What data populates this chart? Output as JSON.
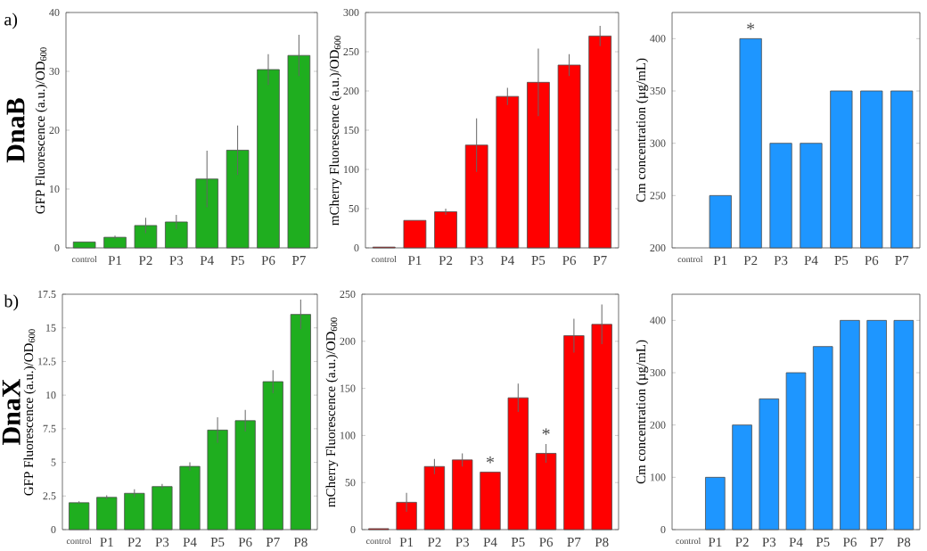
{
  "chart_data": [
    {
      "type": "bar",
      "categories": [
        "control",
        "P1",
        "P2",
        "P3",
        "P4",
        "P5",
        "P6",
        "P7"
      ],
      "ylabel": "GFP Fluorescence (a.u.)/OD$_{600}$",
      "color": "#1fae1f",
      "values": [
        1.0,
        1.8,
        3.8,
        4.4,
        11.7,
        16.6,
        30.3,
        32.7
      ],
      "errors": [
        null,
        0.3,
        1.3,
        1.2,
        4.8,
        4.2,
        2.6,
        3.5
      ],
      "ylim": [
        0,
        40
      ],
      "yticks": [
        0,
        10,
        20,
        30,
        40
      ],
      "annotations": [
        "a)",
        "DnaB"
      ]
    },
    {
      "type": "bar",
      "categories": [
        "control",
        "P1",
        "P2",
        "P3",
        "P4",
        "P5",
        "P6",
        "P7"
      ],
      "ylabel": "mCherry Fluorescence (a.u.)/OD$_{600}$",
      "color": "#ff0000",
      "values": [
        1,
        35,
        46,
        131,
        193,
        211,
        233,
        270
      ],
      "errors": [
        null,
        null,
        4,
        34,
        11,
        43,
        14,
        13
      ],
      "ylim": [
        0,
        300
      ],
      "yticks": [
        0,
        50,
        100,
        150,
        200,
        250,
        300
      ]
    },
    {
      "type": "bar",
      "categories": [
        "control",
        "P1",
        "P2",
        "P3",
        "P4",
        "P5",
        "P6",
        "P7"
      ],
      "ylabel": "Cm concentration (µg/mL)",
      "color": "#1e96ff",
      "values": [
        null,
        250,
        400,
        300,
        300,
        350,
        350,
        350
      ],
      "ylim": [
        200,
        425
      ],
      "yticks": [
        200,
        250,
        300,
        350,
        400
      ],
      "value_labels": [
        null,
        null,
        "*",
        null,
        null,
        null,
        null,
        null
      ]
    },
    {
      "type": "bar",
      "categories": [
        "control",
        "P1",
        "P2",
        "P3",
        "P4",
        "P5",
        "P6",
        "P7",
        "P8"
      ],
      "ylabel": "GFP Fluorescence (a.u.)/OD$_{600}$",
      "color": "#1fae1f",
      "values": [
        2.0,
        2.4,
        2.7,
        3.2,
        4.7,
        7.4,
        8.1,
        11.0,
        16.0
      ],
      "errors": [
        0.1,
        0.15,
        0.3,
        0.2,
        0.3,
        0.95,
        0.8,
        0.85,
        1.1
      ],
      "ylim": [
        0,
        17.5
      ],
      "yticks": [
        0,
        2.5,
        5,
        7.5,
        10,
        12.5,
        15,
        17.5
      ],
      "annotations": [
        "b)",
        "DnaX"
      ]
    },
    {
      "type": "bar",
      "categories": [
        "control",
        "P1",
        "P2",
        "P3",
        "P4",
        "P5",
        "P6",
        "P7",
        "P8"
      ],
      "ylabel": "mCherry Fluorescence (a.u.)/OD$_{600}$",
      "color": "#ff0000",
      "values": [
        1,
        29,
        67,
        74,
        61,
        140,
        81,
        206,
        218
      ],
      "errors": [
        null,
        10,
        8,
        7,
        null,
        15,
        10,
        18,
        21
      ],
      "ylim": [
        0,
        250
      ],
      "yticks": [
        0,
        50,
        100,
        150,
        200,
        250
      ],
      "value_labels": [
        null,
        null,
        null,
        null,
        "*",
        null,
        "*",
        null,
        null
      ]
    },
    {
      "type": "bar",
      "categories": [
        "control",
        "P1",
        "P2",
        "P3",
        "P4",
        "P5",
        "P6",
        "P7",
        "P8"
      ],
      "ylabel": "Cm concentration (µg/mL)",
      "color": "#1e96ff",
      "values": [
        null,
        100,
        200,
        250,
        300,
        350,
        400,
        400,
        400
      ],
      "ylim": [
        0,
        450
      ],
      "yticks": [
        0,
        100,
        200,
        300,
        400
      ]
    }
  ]
}
